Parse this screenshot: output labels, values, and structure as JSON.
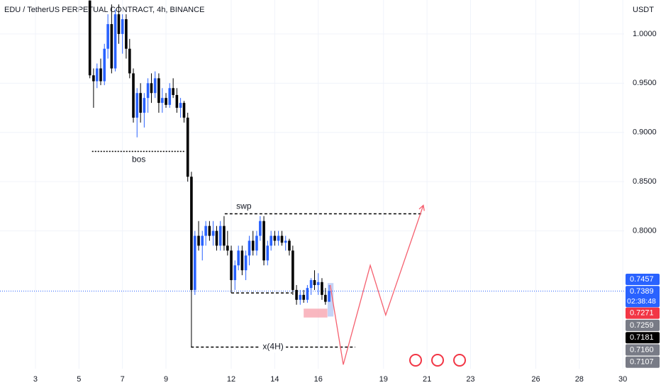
{
  "chart_data": {
    "type": "candlestick",
    "title": "EDU / TetherUS PERPETUAL CONTRACT, 4h, BINANCE",
    "y_axis_label": "USDT",
    "x": [
      5.5,
      5.67,
      5.83,
      6,
      6.17,
      6.33,
      6.5,
      6.67,
      6.83,
      7,
      7.17,
      7.33,
      7.5,
      7.67,
      7.83,
      8,
      8.17,
      8.33,
      8.5,
      8.67,
      8.83,
      9,
      9.17,
      9.33,
      9.5,
      9.67,
      9.83,
      10,
      10.17,
      10.33,
      10.5,
      10.67,
      10.83,
      11,
      11.17,
      11.33,
      11.5,
      11.67,
      11.83,
      12,
      12.17,
      12.33,
      12.5,
      12.67,
      12.83,
      13,
      13.17,
      13.33,
      13.5,
      13.67,
      13.83,
      14,
      14.17,
      14.33,
      14.5,
      14.67,
      14.83,
      15,
      15.17,
      15.33,
      15.5,
      15.67,
      15.83,
      16,
      16.17,
      16.33,
      16.5
    ],
    "open": [
      1.034,
      0.958,
      0.952,
      0.965,
      0.952,
      0.985,
      1.01,
      0.965,
      1.02,
      1.0,
      1.015,
      0.985,
      0.96,
      0.915,
      0.94,
      0.92,
      0.935,
      0.95,
      0.94,
      0.955,
      0.93,
      0.935,
      0.928,
      0.945,
      0.938,
      0.925,
      0.93,
      0.915,
      0.855,
      0.74,
      0.795,
      0.785,
      0.795,
      0.805,
      0.795,
      0.8,
      0.785,
      0.805,
      0.785,
      0.78,
      0.75,
      0.765,
      0.78,
      0.76,
      0.775,
      0.79,
      0.78,
      0.795,
      0.81,
      0.77,
      0.785,
      0.795,
      0.79,
      0.795,
      0.788,
      0.79,
      0.78,
      0.74,
      0.73,
      0.735,
      0.73,
      0.742,
      0.75,
      0.745,
      0.748,
      0.735,
      0.728
    ],
    "high": [
      1.034,
      0.965,
      0.97,
      0.975,
      0.99,
      1.02,
      1.03,
      1.025,
      1.03,
      1.02,
      1.02,
      0.995,
      0.965,
      0.945,
      0.95,
      0.94,
      0.955,
      0.96,
      0.962,
      0.96,
      0.945,
      0.94,
      0.95,
      0.955,
      0.945,
      0.935,
      0.932,
      0.92,
      0.86,
      0.8,
      0.81,
      0.8,
      0.81,
      0.81,
      0.81,
      0.805,
      0.81,
      0.815,
      0.8,
      0.785,
      0.77,
      0.785,
      0.785,
      0.78,
      0.795,
      0.8,
      0.8,
      0.815,
      0.815,
      0.79,
      0.8,
      0.8,
      0.8,
      0.8,
      0.795,
      0.792,
      0.785,
      0.745,
      0.74,
      0.74,
      0.745,
      0.752,
      0.76,
      0.757,
      0.752,
      0.742,
      0.745
    ],
    "low": [
      0.955,
      0.925,
      0.945,
      0.948,
      0.948,
      0.975,
      0.96,
      0.962,
      0.99,
      0.98,
      0.975,
      0.955,
      0.91,
      0.895,
      0.91,
      0.905,
      0.92,
      0.93,
      0.935,
      0.92,
      0.92,
      0.925,
      0.925,
      0.935,
      0.92,
      0.915,
      0.91,
      0.85,
      0.682,
      0.735,
      0.78,
      0.77,
      0.785,
      0.79,
      0.785,
      0.78,
      0.78,
      0.78,
      0.775,
      0.737,
      0.74,
      0.76,
      0.755,
      0.75,
      0.765,
      0.775,
      0.775,
      0.79,
      0.765,
      0.765,
      0.78,
      0.785,
      0.785,
      0.785,
      0.78,
      0.775,
      0.735,
      0.725,
      0.725,
      0.727,
      0.727,
      0.735,
      0.74,
      0.735,
      0.73,
      0.725,
      0.728
    ],
    "close": [
      0.958,
      0.952,
      0.965,
      0.952,
      0.985,
      1.01,
      0.965,
      1.02,
      1.0,
      1.015,
      0.985,
      0.96,
      0.915,
      0.94,
      0.92,
      0.935,
      0.95,
      0.94,
      0.955,
      0.93,
      0.935,
      0.928,
      0.945,
      0.938,
      0.925,
      0.93,
      0.915,
      0.855,
      0.74,
      0.795,
      0.785,
      0.795,
      0.805,
      0.795,
      0.8,
      0.785,
      0.805,
      0.785,
      0.78,
      0.75,
      0.765,
      0.78,
      0.76,
      0.775,
      0.79,
      0.78,
      0.795,
      0.81,
      0.77,
      0.785,
      0.795,
      0.79,
      0.795,
      0.788,
      0.79,
      0.78,
      0.74,
      0.73,
      0.735,
      0.73,
      0.742,
      0.75,
      0.745,
      0.748,
      0.735,
      0.728,
      0.7389
    ],
    "up_color": "#2962ff",
    "down_color": "#000000",
    "xlim": [
      1.37,
      30.06
    ],
    "ylim": [
      0.66,
      1.0345
    ],
    "xticks": [
      3,
      5,
      7,
      9,
      12,
      14,
      16,
      19,
      21,
      23,
      26,
      28,
      30
    ],
    "yticks": [
      {
        "value": 1.0,
        "label": "1.0000"
      },
      {
        "value": 0.95,
        "label": "0.9500"
      },
      {
        "value": 0.9,
        "label": "0.9000"
      },
      {
        "value": 0.85,
        "label": "0.8500"
      },
      {
        "value": 0.8,
        "label": "0.8000"
      }
    ],
    "grid": true,
    "current_price": 0.7389,
    "countdown": "02:38:48",
    "price_labels": [
      {
        "value": 0.7457,
        "label": "0.7457",
        "color": "#2962ff"
      },
      {
        "value": 0.7389,
        "label": "0.7389",
        "color": "#2962ff"
      },
      {
        "value": 0.7271,
        "label": "0.7271",
        "color": "#f23645"
      },
      {
        "value": 0.7259,
        "label": "0.7259",
        "color": "#787b86"
      },
      {
        "value": 0.7181,
        "label": "0.7181",
        "color": "#000000"
      },
      {
        "value": 0.716,
        "label": "0.7160",
        "color": "#787b86"
      },
      {
        "value": 0.7107,
        "label": "0.7107",
        "color": "#787b86"
      }
    ],
    "levels": [
      {
        "label": "bos",
        "x": [
          5.6,
          9.9
        ],
        "y": 0.8807
      },
      {
        "label": "swp",
        "x": [
          11.7,
          20.8
        ],
        "y": 0.8174
      },
      {
        "x": [
          12.0,
          14.8
        ],
        "y": 0.737
      },
      {
        "label": "x(4H)",
        "x": [
          10.15,
          17.7
        ],
        "y": 0.682
      }
    ],
    "zones": [
      {
        "x": [
          15.33,
          16.42
        ],
        "y": [
          0.712,
          0.721
        ],
        "color": "#f7a5b0"
      },
      {
        "x": [
          16.43,
          16.7
        ],
        "y": [
          0.713,
          0.747
        ],
        "color": "#b7c9f5"
      }
    ],
    "projection": {
      "color": "#f5606f",
      "points": [
        [
          16.55,
          0.745
        ],
        [
          17.15,
          0.6642
        ],
        [
          18.39,
          0.765
        ],
        [
          19.1,
          0.7145
        ],
        [
          20.83,
          0.826
        ]
      ]
    }
  }
}
